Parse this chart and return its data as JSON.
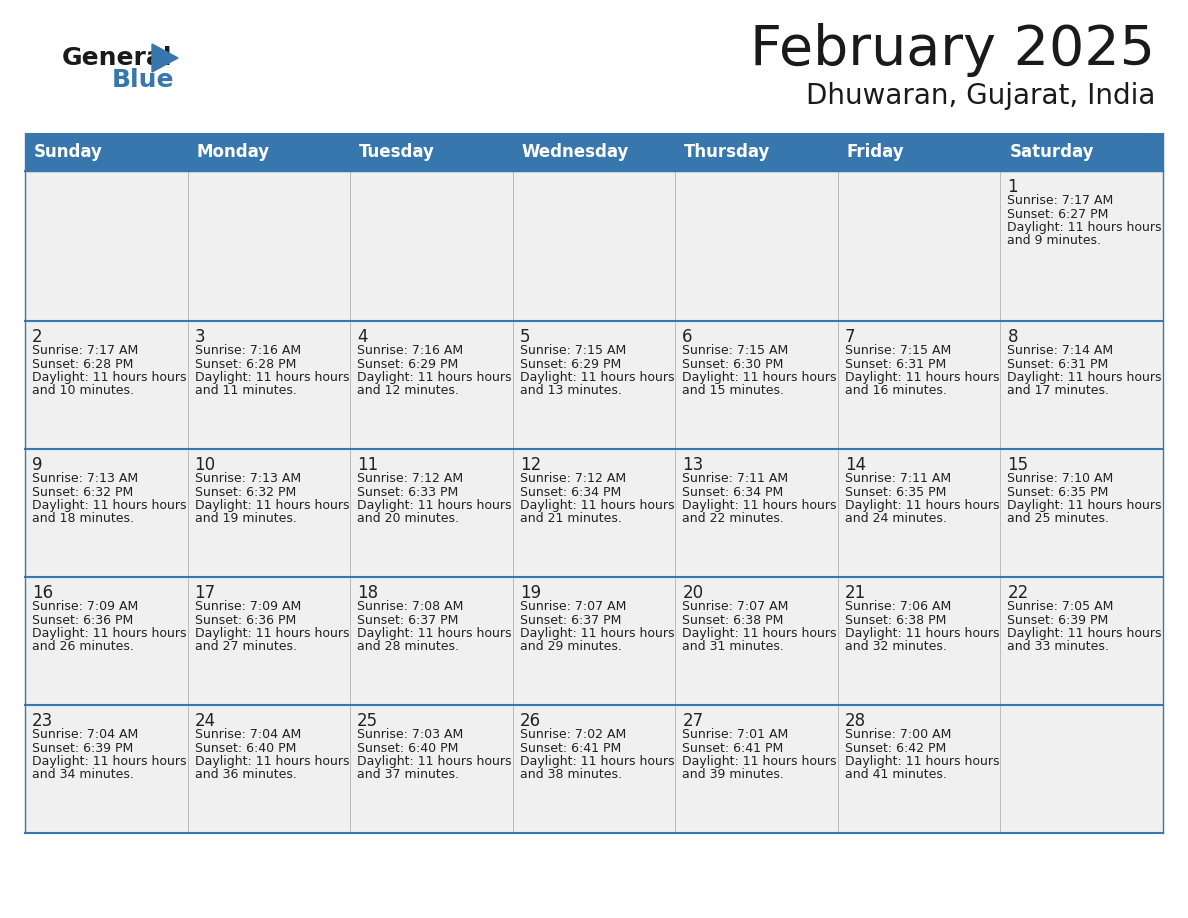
{
  "title": "February 2025",
  "subtitle": "Dhuwaran, Gujarat, India",
  "header_bg_color": "#3876ae",
  "header_text_color": "#ffffff",
  "cell_bg_color": "#f0f0f0",
  "border_color": "#3876ae",
  "sep_line_color": "#3876ae",
  "day_names": [
    "Sunday",
    "Monday",
    "Tuesday",
    "Wednesday",
    "Thursday",
    "Friday",
    "Saturday"
  ],
  "title_color": "#1a1a1a",
  "subtitle_color": "#1a1a1a",
  "number_color": "#222222",
  "text_color": "#222222",
  "logo_general_color": "#1a1a1a",
  "logo_blue_color": "#3876ae",
  "logo_triangle_color": "#3876ae",
  "calendar": [
    [
      null,
      null,
      null,
      null,
      null,
      null,
      {
        "day": 1,
        "sunrise": "7:17 AM",
        "sunset": "6:27 PM",
        "daylight": "11 hours and 9 minutes"
      }
    ],
    [
      {
        "day": 2,
        "sunrise": "7:17 AM",
        "sunset": "6:28 PM",
        "daylight": "11 hours and 10 minutes"
      },
      {
        "day": 3,
        "sunrise": "7:16 AM",
        "sunset": "6:28 PM",
        "daylight": "11 hours and 11 minutes"
      },
      {
        "day": 4,
        "sunrise": "7:16 AM",
        "sunset": "6:29 PM",
        "daylight": "11 hours and 12 minutes"
      },
      {
        "day": 5,
        "sunrise": "7:15 AM",
        "sunset": "6:29 PM",
        "daylight": "11 hours and 13 minutes"
      },
      {
        "day": 6,
        "sunrise": "7:15 AM",
        "sunset": "6:30 PM",
        "daylight": "11 hours and 15 minutes"
      },
      {
        "day": 7,
        "sunrise": "7:15 AM",
        "sunset": "6:31 PM",
        "daylight": "11 hours and 16 minutes"
      },
      {
        "day": 8,
        "sunrise": "7:14 AM",
        "sunset": "6:31 PM",
        "daylight": "11 hours and 17 minutes"
      }
    ],
    [
      {
        "day": 9,
        "sunrise": "7:13 AM",
        "sunset": "6:32 PM",
        "daylight": "11 hours and 18 minutes"
      },
      {
        "day": 10,
        "sunrise": "7:13 AM",
        "sunset": "6:32 PM",
        "daylight": "11 hours and 19 minutes"
      },
      {
        "day": 11,
        "sunrise": "7:12 AM",
        "sunset": "6:33 PM",
        "daylight": "11 hours and 20 minutes"
      },
      {
        "day": 12,
        "sunrise": "7:12 AM",
        "sunset": "6:34 PM",
        "daylight": "11 hours and 21 minutes"
      },
      {
        "day": 13,
        "sunrise": "7:11 AM",
        "sunset": "6:34 PM",
        "daylight": "11 hours and 22 minutes"
      },
      {
        "day": 14,
        "sunrise": "7:11 AM",
        "sunset": "6:35 PM",
        "daylight": "11 hours and 24 minutes"
      },
      {
        "day": 15,
        "sunrise": "7:10 AM",
        "sunset": "6:35 PM",
        "daylight": "11 hours and 25 minutes"
      }
    ],
    [
      {
        "day": 16,
        "sunrise": "7:09 AM",
        "sunset": "6:36 PM",
        "daylight": "11 hours and 26 minutes"
      },
      {
        "day": 17,
        "sunrise": "7:09 AM",
        "sunset": "6:36 PM",
        "daylight": "11 hours and 27 minutes"
      },
      {
        "day": 18,
        "sunrise": "7:08 AM",
        "sunset": "6:37 PM",
        "daylight": "11 hours and 28 minutes"
      },
      {
        "day": 19,
        "sunrise": "7:07 AM",
        "sunset": "6:37 PM",
        "daylight": "11 hours and 29 minutes"
      },
      {
        "day": 20,
        "sunrise": "7:07 AM",
        "sunset": "6:38 PM",
        "daylight": "11 hours and 31 minutes"
      },
      {
        "day": 21,
        "sunrise": "7:06 AM",
        "sunset": "6:38 PM",
        "daylight": "11 hours and 32 minutes"
      },
      {
        "day": 22,
        "sunrise": "7:05 AM",
        "sunset": "6:39 PM",
        "daylight": "11 hours and 33 minutes"
      }
    ],
    [
      {
        "day": 23,
        "sunrise": "7:04 AM",
        "sunset": "6:39 PM",
        "daylight": "11 hours and 34 minutes"
      },
      {
        "day": 24,
        "sunrise": "7:04 AM",
        "sunset": "6:40 PM",
        "daylight": "11 hours and 36 minutes"
      },
      {
        "day": 25,
        "sunrise": "7:03 AM",
        "sunset": "6:40 PM",
        "daylight": "11 hours and 37 minutes"
      },
      {
        "day": 26,
        "sunrise": "7:02 AM",
        "sunset": "6:41 PM",
        "daylight": "11 hours and 38 minutes"
      },
      {
        "day": 27,
        "sunrise": "7:01 AM",
        "sunset": "6:41 PM",
        "daylight": "11 hours and 39 minutes"
      },
      {
        "day": 28,
        "sunrise": "7:00 AM",
        "sunset": "6:42 PM",
        "daylight": "11 hours and 41 minutes"
      },
      null
    ]
  ]
}
